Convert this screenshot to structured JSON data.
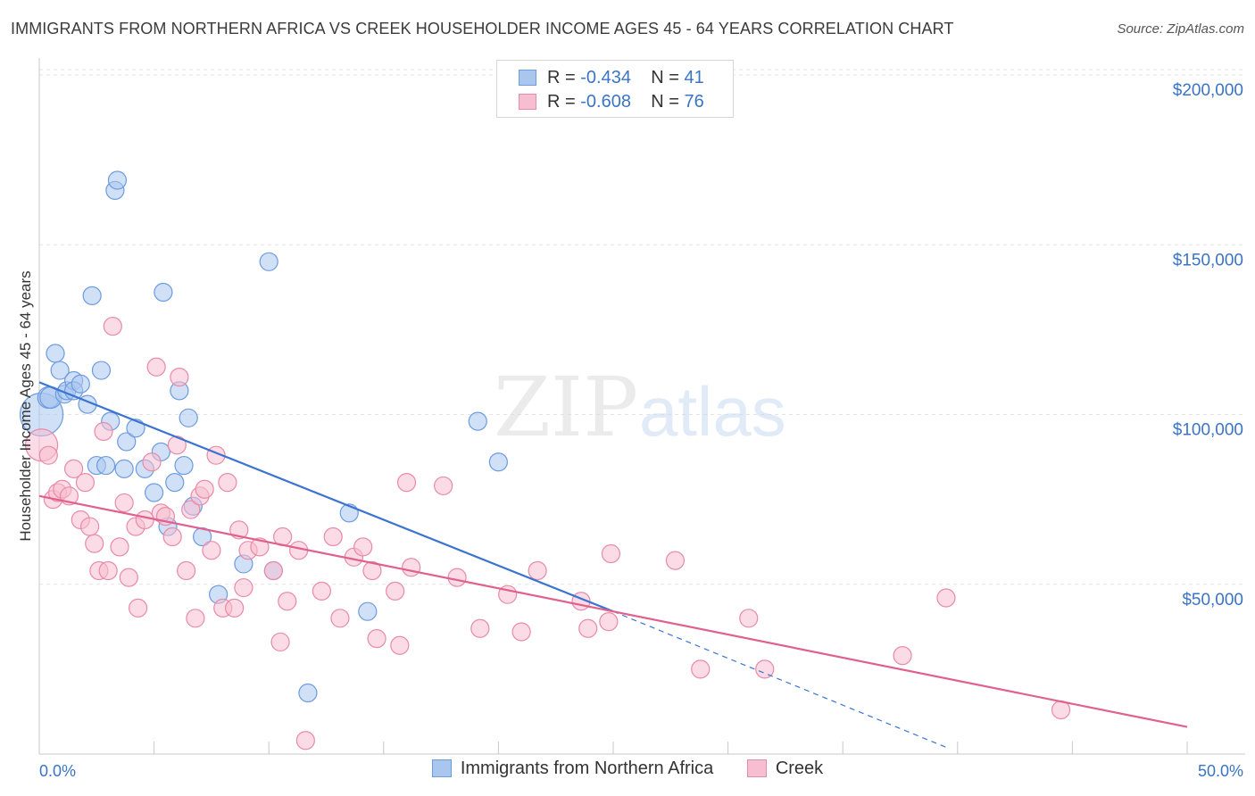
{
  "title": "IMMIGRANTS FROM NORTHERN AFRICA VS CREEK HOUSEHOLDER INCOME AGES 45 - 64 YEARS CORRELATION CHART",
  "source": "Source: ZipAtlas.com",
  "watermark": {
    "zip": "ZIP",
    "atlas": "atlas"
  },
  "legend": {
    "r_label": "R =",
    "n_label": "N =",
    "rows": [
      {
        "r": "-0.434",
        "n": "41",
        "color": "#a9c6ee",
        "border": "#6c9be0"
      },
      {
        "r": "-0.608",
        "n": "76",
        "color": "#f7bdd0",
        "border": "#e88aa8"
      }
    ]
  },
  "bottom_legend": {
    "series1": "Immigrants from Northern Africa",
    "series2": "Creek"
  },
  "chart_data": {
    "type": "scatter",
    "xlabel": "",
    "ylabel": "Householder Income Ages 45 - 64 years",
    "xlim": [
      0,
      50
    ],
    "ylim": [
      0,
      205000
    ],
    "x_tick_labels": [
      "0.0%",
      "50.0%"
    ],
    "y_tick_labels": [
      "$50,000",
      "$100,000",
      "$150,000",
      "$200,000"
    ],
    "y_ticks": [
      50000,
      100000,
      150000,
      200000
    ],
    "x_minor_ticks": [
      5,
      10,
      15,
      20,
      25,
      30,
      35,
      40,
      45
    ],
    "grid": true,
    "series": [
      {
        "name": "Immigrants from Northern Africa",
        "color": "#a9c6ee",
        "stroke": "#6c9be0",
        "trend": {
          "x": [
            0,
            25
          ],
          "y": [
            109500,
            42000
          ],
          "dash_to": [
            39.5,
            2000
          ],
          "color": "#3b74d0"
        },
        "points": [
          [
            0.1,
            100000,
            24
          ],
          [
            0.4,
            105000,
            12
          ],
          [
            0.5,
            105000,
            12
          ],
          [
            0.7,
            118000,
            10
          ],
          [
            0.9,
            113000,
            10
          ],
          [
            1.1,
            106000,
            10
          ],
          [
            1.2,
            107000,
            10
          ],
          [
            1.5,
            110000,
            10
          ],
          [
            1.5,
            107000,
            10
          ],
          [
            1.8,
            109000,
            10
          ],
          [
            2.1,
            103000,
            10
          ],
          [
            2.3,
            135000,
            10
          ],
          [
            2.5,
            85000,
            10
          ],
          [
            2.7,
            113000,
            10
          ],
          [
            2.9,
            85000,
            10
          ],
          [
            3.1,
            98000,
            10
          ],
          [
            3.3,
            166000,
            10
          ],
          [
            3.4,
            169000,
            10
          ],
          [
            3.7,
            84000,
            10
          ],
          [
            3.8,
            92000,
            10
          ],
          [
            4.2,
            96000,
            10
          ],
          [
            4.6,
            84000,
            10
          ],
          [
            5.0,
            77000,
            10
          ],
          [
            5.3,
            89000,
            10
          ],
          [
            5.4,
            136000,
            10
          ],
          [
            5.6,
            67000,
            10
          ],
          [
            5.9,
            80000,
            10
          ],
          [
            6.1,
            107000,
            10
          ],
          [
            6.3,
            85000,
            10
          ],
          [
            6.5,
            99000,
            10
          ],
          [
            6.7,
            73000,
            10
          ],
          [
            7.1,
            64000,
            10
          ],
          [
            7.8,
            47000,
            10
          ],
          [
            8.9,
            56000,
            10
          ],
          [
            10.0,
            145000,
            10
          ],
          [
            10.2,
            54000,
            10
          ],
          [
            11.7,
            18000,
            10
          ],
          [
            13.5,
            71000,
            10
          ],
          [
            14.3,
            42000,
            10
          ],
          [
            19.1,
            98000,
            10
          ],
          [
            20.0,
            86000,
            10
          ]
        ]
      },
      {
        "name": "Creek",
        "color": "#f7bdd0",
        "stroke": "#e88aa8",
        "trend": {
          "x": [
            0,
            50
          ],
          "y": [
            76000,
            8000
          ],
          "color": "#e0608e"
        },
        "points": [
          [
            0.1,
            91000,
            18
          ],
          [
            0.4,
            88000,
            10
          ],
          [
            0.6,
            75000,
            10
          ],
          [
            0.8,
            77000,
            10
          ],
          [
            1.0,
            78000,
            10
          ],
          [
            1.3,
            76000,
            10
          ],
          [
            1.5,
            84000,
            10
          ],
          [
            1.8,
            69000,
            10
          ],
          [
            2.0,
            80000,
            10
          ],
          [
            2.2,
            67000,
            10
          ],
          [
            2.4,
            62000,
            10
          ],
          [
            2.6,
            54000,
            10
          ],
          [
            2.8,
            95000,
            10
          ],
          [
            3.0,
            54000,
            10
          ],
          [
            3.2,
            126000,
            10
          ],
          [
            3.5,
            61000,
            10
          ],
          [
            3.7,
            74000,
            10
          ],
          [
            3.9,
            52000,
            10
          ],
          [
            4.2,
            67000,
            10
          ],
          [
            4.3,
            43000,
            10
          ],
          [
            4.6,
            69000,
            10
          ],
          [
            4.9,
            86000,
            10
          ],
          [
            5.1,
            114000,
            10
          ],
          [
            5.3,
            71000,
            10
          ],
          [
            5.5,
            70000,
            10
          ],
          [
            5.8,
            64000,
            10
          ],
          [
            6.0,
            91000,
            10
          ],
          [
            6.1,
            111000,
            10
          ],
          [
            6.4,
            54000,
            10
          ],
          [
            6.6,
            72000,
            10
          ],
          [
            6.8,
            40000,
            10
          ],
          [
            7.0,
            76000,
            10
          ],
          [
            7.2,
            78000,
            10
          ],
          [
            7.5,
            60000,
            10
          ],
          [
            7.7,
            88000,
            10
          ],
          [
            8.0,
            43000,
            10
          ],
          [
            8.2,
            80000,
            10
          ],
          [
            8.5,
            43000,
            10
          ],
          [
            8.7,
            66000,
            10
          ],
          [
            8.9,
            49000,
            10
          ],
          [
            9.1,
            60000,
            10
          ],
          [
            9.6,
            61000,
            10
          ],
          [
            10.2,
            54000,
            10
          ],
          [
            10.5,
            33000,
            10
          ],
          [
            10.6,
            64000,
            10
          ],
          [
            10.8,
            45000,
            10
          ],
          [
            11.3,
            60000,
            10
          ],
          [
            11.6,
            4000,
            10
          ],
          [
            12.3,
            48000,
            10
          ],
          [
            12.8,
            64000,
            10
          ],
          [
            13.1,
            40000,
            10
          ],
          [
            13.7,
            58000,
            10
          ],
          [
            14.1,
            61000,
            10
          ],
          [
            14.5,
            54000,
            10
          ],
          [
            14.7,
            34000,
            10
          ],
          [
            15.5,
            48000,
            10
          ],
          [
            15.7,
            32000,
            10
          ],
          [
            16.0,
            80000,
            10
          ],
          [
            16.2,
            55000,
            10
          ],
          [
            17.6,
            79000,
            10
          ],
          [
            18.2,
            52000,
            10
          ],
          [
            19.2,
            37000,
            10
          ],
          [
            20.4,
            47000,
            10
          ],
          [
            21.0,
            36000,
            10
          ],
          [
            21.7,
            54000,
            10
          ],
          [
            23.6,
            45000,
            10
          ],
          [
            23.9,
            37000,
            10
          ],
          [
            24.8,
            39000,
            10
          ],
          [
            24.9,
            59000,
            10
          ],
          [
            27.7,
            57000,
            10
          ],
          [
            28.8,
            25000,
            10
          ],
          [
            30.9,
            40000,
            10
          ],
          [
            31.6,
            25000,
            10
          ],
          [
            37.6,
            29000,
            10
          ],
          [
            39.5,
            46000,
            10
          ],
          [
            44.5,
            13000,
            10
          ]
        ]
      }
    ]
  }
}
